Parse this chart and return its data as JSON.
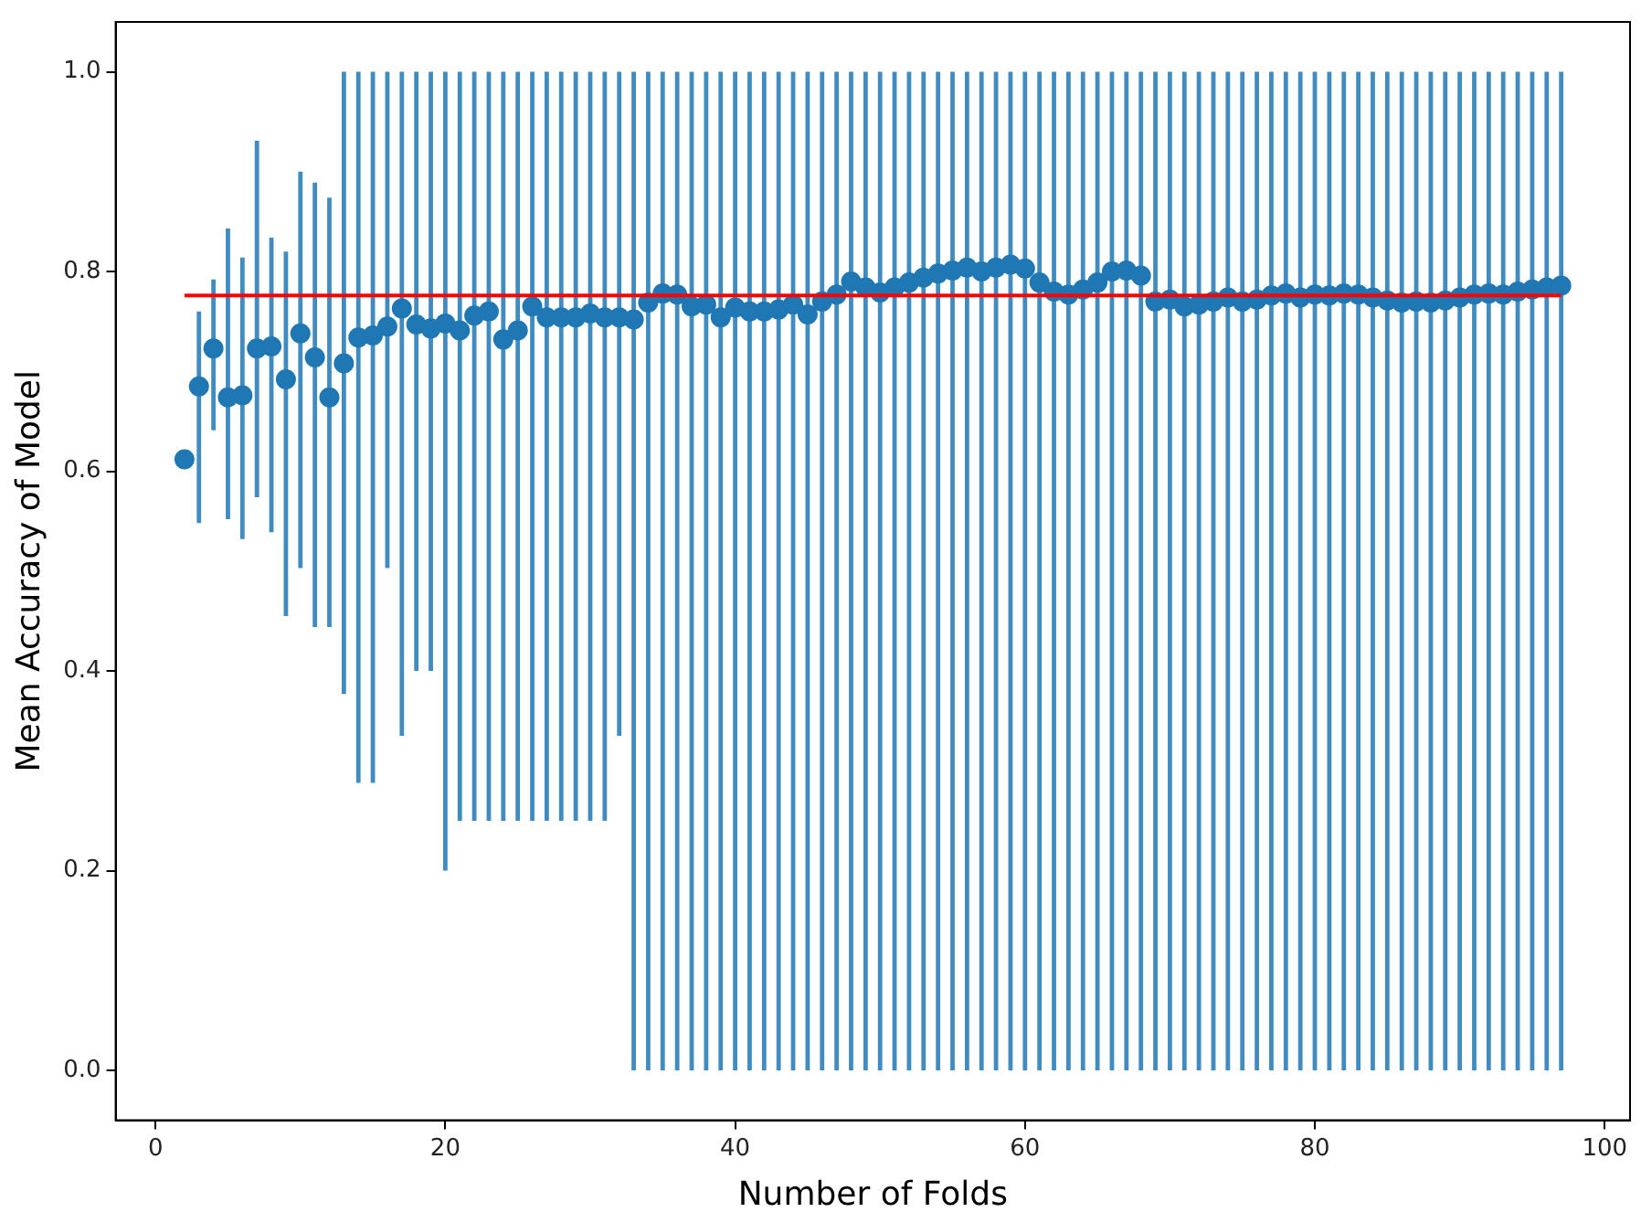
{
  "chart_data": {
    "type": "scatter",
    "xlabel": "Number of Folds",
    "ylabel": "Mean Accuracy of Model",
    "xlim": [
      -2.75,
      101.75
    ],
    "ylim": [
      -0.05,
      1.05
    ],
    "xticks": [
      0,
      20,
      40,
      60,
      80,
      100
    ],
    "yticks": [
      {
        "value": 0,
        "label": "0.0"
      },
      {
        "value": 0.2,
        "label": "0.2"
      },
      {
        "value": 0.4,
        "label": "0.4"
      },
      {
        "value": 0.6,
        "label": "0.6"
      },
      {
        "value": 0.8,
        "label": "0.8"
      },
      {
        "value": 1,
        "label": "1.0"
      }
    ],
    "grid": false,
    "legend": false,
    "marker": "circle",
    "series": [
      {
        "color": "#1f77b4",
        "x": [
          2,
          3,
          4,
          5,
          6,
          7,
          8,
          9,
          10,
          11,
          12,
          13,
          14,
          15,
          16,
          17,
          18,
          19,
          20,
          21,
          22,
          23,
          24,
          25,
          26,
          27,
          28,
          29,
          30,
          31,
          32,
          33,
          34,
          35,
          36,
          37,
          38,
          39,
          40,
          41,
          42,
          43,
          44,
          45,
          46,
          47,
          48,
          49,
          50,
          51,
          52,
          53,
          54,
          55,
          56,
          57,
          58,
          59,
          60,
          61,
          62,
          63,
          64,
          65,
          66,
          67,
          68,
          69,
          70,
          71,
          72,
          73,
          74,
          75,
          76,
          77,
          78,
          79,
          80,
          81,
          82,
          83,
          84,
          85,
          86,
          87,
          88,
          89,
          90,
          91,
          92,
          93,
          94,
          95,
          96,
          97
        ],
        "values": [
          0.612,
          0.685,
          0.723,
          0.674,
          0.676,
          0.723,
          0.725,
          0.692,
          0.738,
          0.714,
          0.674,
          0.708,
          0.734,
          0.736,
          0.745,
          0.763,
          0.747,
          0.743,
          0.748,
          0.741,
          0.756,
          0.76,
          0.732,
          0.741,
          0.765,
          0.754,
          0.754,
          0.754,
          0.758,
          0.754,
          0.754,
          0.752,
          0.769,
          0.778,
          0.777,
          0.765,
          0.767,
          0.754,
          0.764,
          0.76,
          0.76,
          0.762,
          0.767,
          0.757,
          0.77,
          0.777,
          0.79,
          0.784,
          0.779,
          0.784,
          0.789,
          0.794,
          0.798,
          0.801,
          0.804,
          0.8,
          0.804,
          0.807,
          0.803,
          0.789,
          0.78,
          0.777,
          0.782,
          0.789,
          0.8,
          0.801,
          0.796,
          0.77,
          0.772,
          0.765,
          0.767,
          0.77,
          0.774,
          0.77,
          0.772,
          0.776,
          0.778,
          0.774,
          0.777,
          0.776,
          0.778,
          0.777,
          0.774,
          0.771,
          0.769,
          0.77,
          0.769,
          0.771,
          0.774,
          0.777,
          0.778,
          0.777,
          0.78,
          0.782,
          0.784,
          0.786
        ],
        "errors": [
          null,
          [
            0.548,
            0.76
          ],
          [
            0.641,
            0.792
          ],
          [
            0.552,
            0.843
          ],
          [
            0.532,
            0.814
          ],
          [
            0.574,
            0.931
          ],
          [
            0.539,
            0.834
          ],
          [
            0.455,
            0.82
          ],
          [
            0.503,
            0.9
          ],
          [
            0.444,
            0.889
          ],
          [
            0.444,
            0.874
          ],
          [
            0.377,
            1
          ],
          [
            0.288,
            1
          ],
          [
            0.288,
            1
          ],
          [
            0.503,
            1
          ],
          [
            0.335,
            1
          ],
          [
            0.4,
            1
          ],
          [
            0.4,
            1
          ],
          [
            0.2,
            1
          ],
          [
            0.25,
            1
          ],
          [
            0.25,
            1
          ],
          [
            0.25,
            1
          ],
          [
            0.25,
            1
          ],
          [
            0.25,
            1
          ],
          [
            0.25,
            1
          ],
          [
            0.25,
            1
          ],
          [
            0.25,
            1
          ],
          [
            0.25,
            1
          ],
          [
            0.25,
            1
          ],
          [
            0.25,
            1
          ],
          [
            0.335,
            1
          ],
          [
            0,
            1
          ],
          [
            0,
            1
          ],
          [
            0,
            1
          ],
          [
            0,
            1
          ],
          [
            0,
            1
          ],
          [
            0,
            1
          ],
          [
            0,
            1
          ],
          [
            0,
            1
          ],
          [
            0,
            1
          ],
          [
            0,
            1
          ],
          [
            0,
            1
          ],
          [
            0,
            1
          ],
          [
            0,
            1
          ],
          [
            0,
            1
          ],
          [
            0,
            1
          ],
          [
            0,
            1
          ],
          [
            0,
            1
          ],
          [
            0,
            1
          ],
          [
            0,
            1
          ],
          [
            0,
            1
          ],
          [
            0,
            1
          ],
          [
            0,
            1
          ],
          [
            0,
            1
          ],
          [
            0,
            1
          ],
          [
            0,
            1
          ],
          [
            0,
            1
          ],
          [
            0,
            1
          ],
          [
            0,
            1
          ],
          [
            0,
            1
          ],
          [
            0,
            1
          ],
          [
            0,
            1
          ],
          [
            0,
            1
          ],
          [
            0,
            1
          ],
          [
            0,
            1
          ],
          [
            0,
            1
          ],
          [
            0,
            1
          ],
          [
            0,
            1
          ],
          [
            0,
            1
          ],
          [
            0,
            1
          ],
          [
            0,
            1
          ],
          [
            0,
            1
          ],
          [
            0,
            1
          ],
          [
            0,
            1
          ],
          [
            0,
            1
          ],
          [
            0,
            1
          ],
          [
            0,
            1
          ],
          [
            0,
            1
          ],
          [
            0,
            1
          ],
          [
            0,
            1
          ],
          [
            0,
            1
          ],
          [
            0,
            1
          ],
          [
            0,
            1
          ],
          [
            0,
            1
          ],
          [
            0,
            1
          ],
          [
            0,
            1
          ],
          [
            0,
            1
          ],
          [
            0,
            1
          ],
          [
            0,
            1
          ],
          [
            0,
            1
          ],
          [
            0,
            1
          ],
          [
            0,
            1
          ],
          [
            0,
            1
          ],
          [
            0,
            1
          ],
          [
            0,
            1
          ],
          [
            0,
            1
          ]
        ]
      },
      {
        "type": "line",
        "color": "#ff0000",
        "marker": "none",
        "x": [
          2,
          97
        ],
        "values": [
          0.776,
          0.776
        ]
      }
    ]
  }
}
